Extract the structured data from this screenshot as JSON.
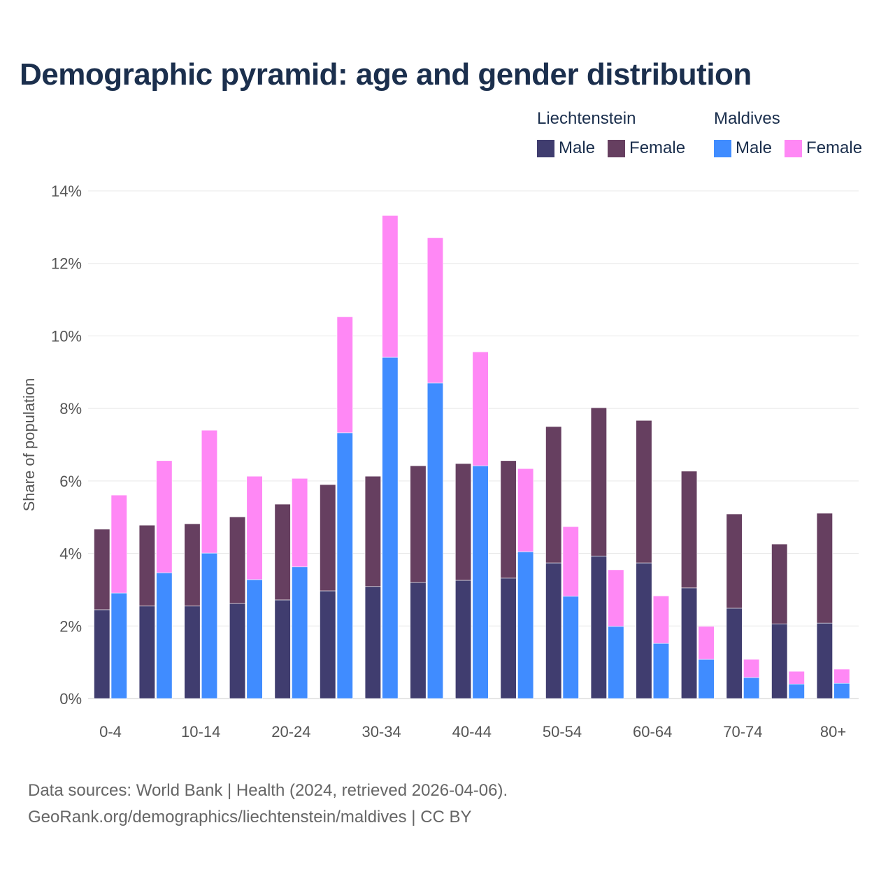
{
  "chart_data": {
    "type": "bar",
    "stacked": true,
    "title": "Demographic pyramid: age and gender distribution",
    "ylabel": "Share of population",
    "xlabel": "",
    "ylim": [
      0,
      14
    ],
    "y_ticks": [
      "0%",
      "2%",
      "4%",
      "6%",
      "8%",
      "10%",
      "12%",
      "14%"
    ],
    "y_tick_values": [
      0,
      2,
      4,
      6,
      8,
      10,
      12,
      14
    ],
    "categories": [
      "0-4",
      "5-9",
      "10-14",
      "15-19",
      "20-24",
      "25-29",
      "30-34",
      "35-39",
      "40-44",
      "45-49",
      "50-54",
      "55-59",
      "60-64",
      "65-69",
      "70-74",
      "75-79",
      "80+"
    ],
    "x_tick_labels_shown": [
      "0-4",
      "10-14",
      "20-24",
      "30-34",
      "40-44",
      "50-54",
      "60-64",
      "70-74",
      "80+"
    ],
    "grid": true,
    "legend_placement": "top-right",
    "countries": [
      {
        "name": "Liechtenstein",
        "series": [
          {
            "name": "Male",
            "color": "#403d6f",
            "values": [
              2.45,
              2.55,
              2.55,
              2.62,
              2.72,
              2.97,
              3.09,
              3.2,
              3.26,
              3.32,
              3.74,
              3.93,
              3.74,
              3.05,
              2.49,
              2.06,
              2.08
            ]
          },
          {
            "name": "Female",
            "color": "#663f60",
            "values": [
              2.22,
              2.23,
              2.27,
              2.39,
              2.64,
              2.93,
              3.04,
              3.22,
              3.22,
              3.24,
              3.76,
              4.09,
              3.93,
              3.22,
              2.6,
              2.2,
              3.03
            ]
          }
        ]
      },
      {
        "name": "Maldives",
        "series": [
          {
            "name": "Male",
            "color": "#408cff",
            "values": [
              2.91,
              3.47,
              4.01,
              3.28,
              3.63,
              7.33,
              9.41,
              8.7,
              6.42,
              4.05,
              2.82,
              1.99,
              1.52,
              1.08,
              0.58,
              0.4,
              0.42
            ]
          },
          {
            "name": "Female",
            "color": "#ff88f5",
            "values": [
              2.7,
              3.09,
              3.39,
              2.85,
              2.44,
              3.2,
              3.91,
              4.01,
              3.14,
              2.29,
              1.92,
              1.56,
              1.31,
              0.91,
              0.5,
              0.35,
              0.39
            ]
          }
        ]
      }
    ]
  },
  "footer": {
    "line1": "Data sources: World Bank | Health (2024, retrieved 2026-04-06).",
    "line2": "GeoRank.org/demographics/liechtenstein/maldives | CC BY"
  }
}
